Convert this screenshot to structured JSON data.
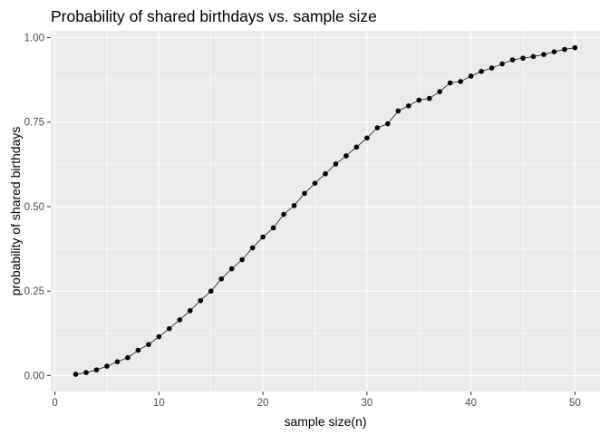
{
  "chart_data": {
    "type": "line",
    "title": "Probability of shared birthdays vs. sample size",
    "xlabel": "sample size(n)",
    "ylabel": "probability of shared birthdays",
    "xlim": [
      -0.4,
      52.4
    ],
    "ylim": [
      -0.047,
      1.02
    ],
    "xticks": [
      0,
      10,
      20,
      30,
      40,
      50
    ],
    "xtick_labels": [
      "0",
      "10",
      "20",
      "30",
      "40",
      "50"
    ],
    "yticks": [
      0.0,
      0.25,
      0.5,
      0.75,
      1.0
    ],
    "ytick_labels": [
      "0.00",
      "0.25",
      "0.50",
      "0.75",
      "1.00"
    ],
    "grid": true,
    "legend": "none",
    "colors": {
      "panel": "#ebebeb",
      "grid": "#ffffff",
      "points": "#000000",
      "line": "#000000",
      "ticks": "#4d4d4d"
    },
    "series": [
      {
        "x": [
          2,
          3,
          4,
          5,
          6,
          7,
          8,
          9,
          10,
          11,
          12,
          13,
          14,
          15,
          16,
          17,
          18,
          19,
          20,
          21,
          22,
          23,
          24,
          25,
          26,
          27,
          28,
          29,
          30,
          31,
          32,
          33,
          34,
          35,
          36,
          37,
          38,
          39,
          40,
          41,
          42,
          43,
          44,
          45,
          46,
          47,
          48,
          49,
          50
        ],
        "y": [
          0.004,
          0.009,
          0.017,
          0.028,
          0.041,
          0.053,
          0.075,
          0.092,
          0.115,
          0.139,
          0.165,
          0.192,
          0.222,
          0.25,
          0.286,
          0.316,
          0.343,
          0.378,
          0.41,
          0.437,
          0.477,
          0.503,
          0.539,
          0.569,
          0.597,
          0.626,
          0.65,
          0.676,
          0.703,
          0.733,
          0.745,
          0.783,
          0.798,
          0.815,
          0.82,
          0.84,
          0.866,
          0.87,
          0.886,
          0.9,
          0.91,
          0.922,
          0.934,
          0.939,
          0.944,
          0.95,
          0.958,
          0.965,
          0.97
        ]
      }
    ]
  }
}
